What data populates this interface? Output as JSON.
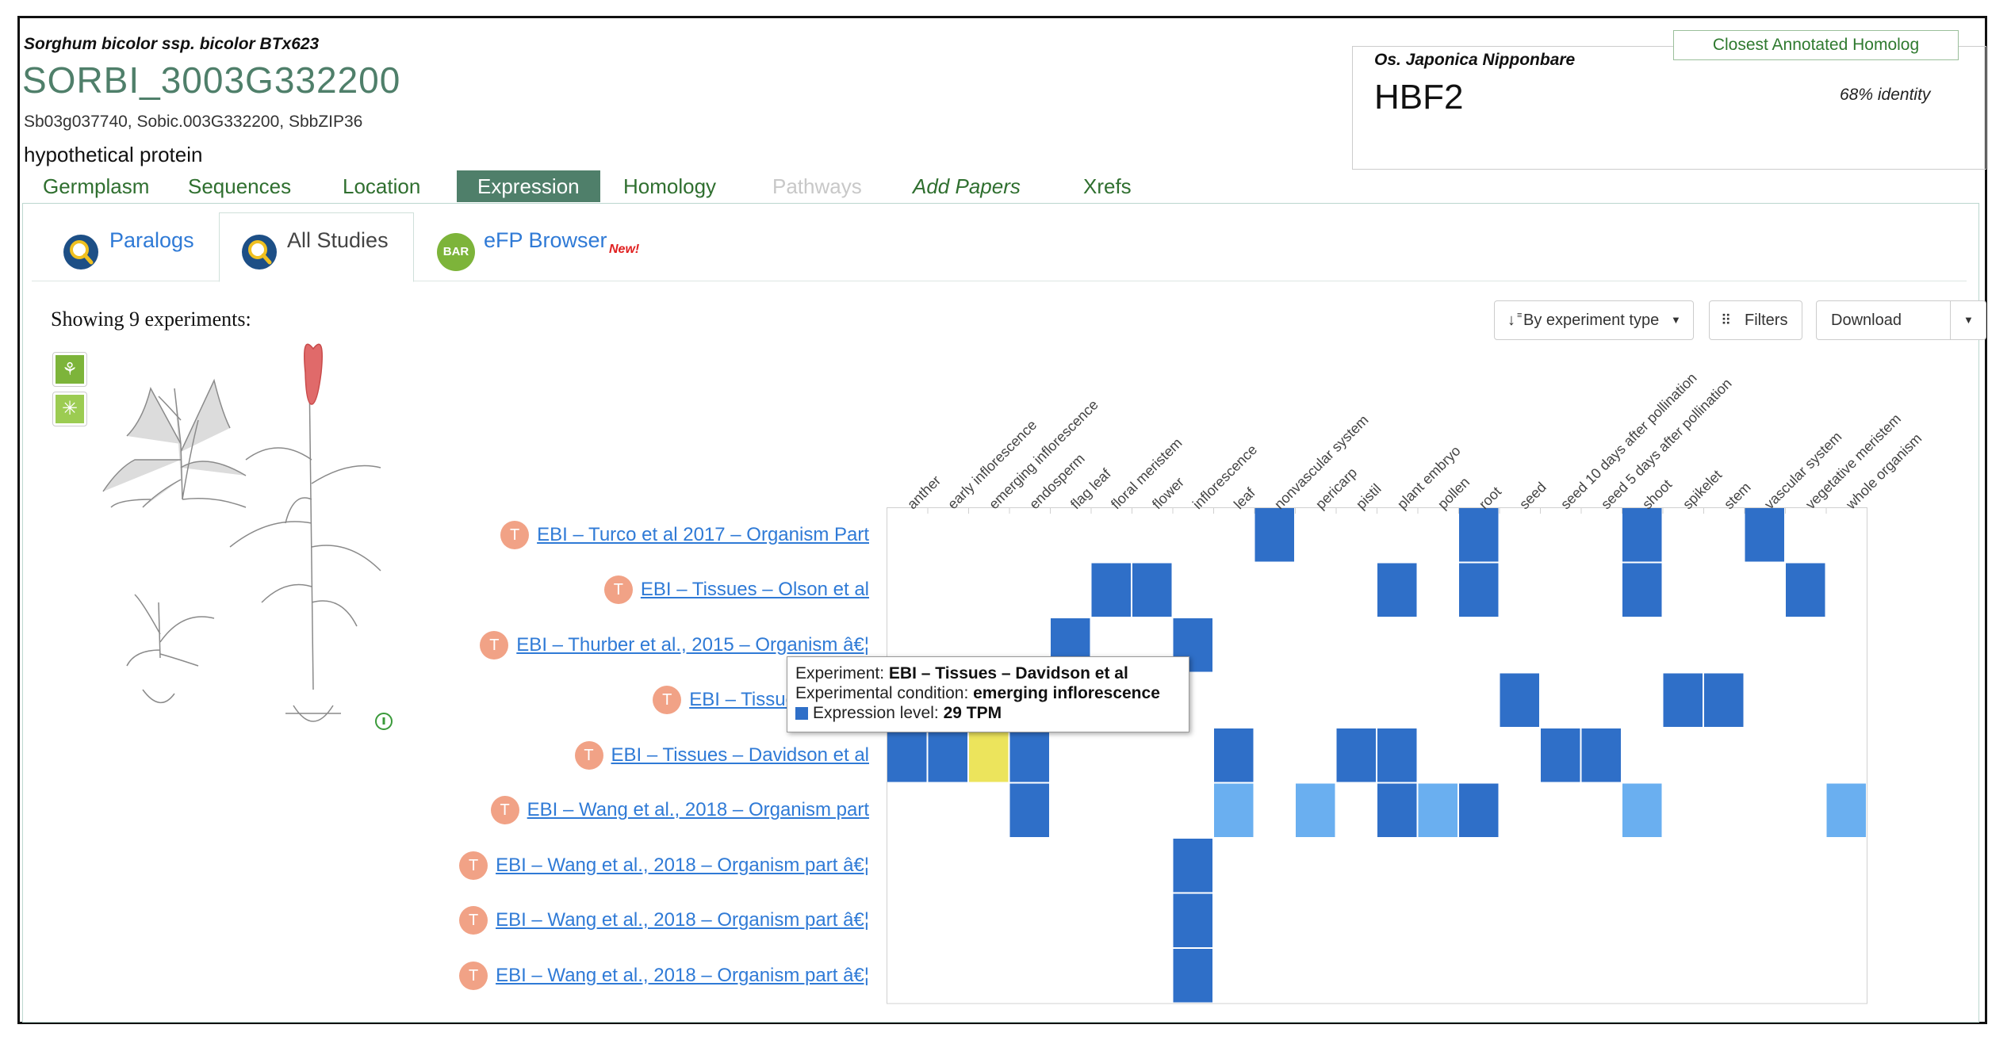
{
  "header": {
    "species": "Sorghum bicolor ssp. bicolor BTx623",
    "gene_id": "SORBI_3003G332200",
    "synonyms": "Sb03g037740, Sobic.003G332200, SbbZIP36",
    "description": "hypothetical protein"
  },
  "homolog": {
    "badge": "Closest Annotated Homolog",
    "species": "Os. Japonica Nipponbare",
    "name": "HBF2",
    "identity": "68% identity"
  },
  "tabs": [
    {
      "label": "Germplasm"
    },
    {
      "label": "Sequences"
    },
    {
      "label": "Location"
    },
    {
      "label": "Expression"
    },
    {
      "label": "Homology"
    },
    {
      "label": "Pathways"
    },
    {
      "label": "Add Papers"
    },
    {
      "label": "Xrefs"
    }
  ],
  "subtabs": {
    "paralogs": "Paralogs",
    "all_studies": "All Studies",
    "efp": "eFP Browser",
    "efp_badge": "New!",
    "bar_icon_text": "BAR"
  },
  "toolbar": {
    "showing": "Showing 9 experiments:",
    "sort": "By experiment type",
    "filters": "Filters",
    "download": "Download"
  },
  "colors": {
    "high": "#2f6fc8",
    "low": "#6aaff0",
    "selected": "#ece45c",
    "grid": "#d0d0d0",
    "gene_green": "#4f7f6a",
    "link_blue": "#2f7ad6"
  },
  "icons": [
    "magnifier-icon",
    "bar-logo-icon",
    "sort-icon",
    "filter-icon",
    "caret-down-icon",
    "plant-view-icon",
    "flower-view-icon",
    "info-icon"
  ],
  "heatmap": {
    "conditions": [
      "anther",
      "early inflorescence",
      "emerging inflorescence",
      "endosperm",
      "flag leaf",
      "floral meristem",
      "flower",
      "inflorescence",
      "leaf",
      "nonvascular system",
      "pericarp",
      "pistil",
      "plant embryo",
      "pollen",
      "root",
      "seed",
      "seed 10 days after pollination",
      "seed 5 days after pollination",
      "shoot",
      "spikelet",
      "stem",
      "vascular system",
      "vegetative meristem",
      "whole organism"
    ],
    "experiments": [
      {
        "name": "EBI – Turco et al 2017 – Organism Part",
        "badge": "T",
        "cells": [
          [
            9,
            "high"
          ],
          [
            14,
            "high"
          ],
          [
            18,
            "high"
          ],
          [
            21,
            "high"
          ]
        ]
      },
      {
        "name": "EBI – Tissues – Olson et al",
        "badge": "T",
        "cells": [
          [
            5,
            "high"
          ],
          [
            6,
            "high"
          ],
          [
            12,
            "high"
          ],
          [
            14,
            "high"
          ],
          [
            18,
            "high"
          ],
          [
            22,
            "high"
          ]
        ]
      },
      {
        "name": "EBI – Thurber et al., 2015 – Organism â€¦",
        "badge": "T",
        "cells": [
          [
            4,
            "high"
          ],
          [
            7,
            "high"
          ]
        ]
      },
      {
        "name": "EBI – Tissues – 3 Ma",
        "badge": "T",
        "cells": [
          [
            15,
            "high"
          ],
          [
            19,
            "high"
          ],
          [
            20,
            "high"
          ]
        ]
      },
      {
        "name": "EBI – Tissues – Davidson et al",
        "badge": "T",
        "cells": [
          [
            0,
            "high"
          ],
          [
            1,
            "high"
          ],
          [
            2,
            "selected"
          ],
          [
            3,
            "high"
          ],
          [
            8,
            "high"
          ],
          [
            11,
            "high"
          ],
          [
            12,
            "high"
          ],
          [
            16,
            "high"
          ],
          [
            17,
            "high"
          ]
        ]
      },
      {
        "name": "EBI – Wang et al., 2018 – Organism part",
        "badge": "T",
        "cells": [
          [
            3,
            "high"
          ],
          [
            8,
            "low"
          ],
          [
            10,
            "low"
          ],
          [
            12,
            "high"
          ],
          [
            13,
            "low"
          ],
          [
            14,
            "high"
          ],
          [
            18,
            "low"
          ],
          [
            23,
            "low"
          ]
        ]
      },
      {
        "name": "EBI – Wang et al., 2018 – Organism part â€¦",
        "badge": "T",
        "cells": [
          [
            7,
            "high"
          ]
        ]
      },
      {
        "name": "EBI – Wang et al., 2018 – Organism part â€¦",
        "badge": "T",
        "cells": [
          [
            7,
            "high"
          ]
        ]
      },
      {
        "name": "EBI – Wang et al., 2018 – Organism part â€¦",
        "badge": "T",
        "cells": [
          [
            7,
            "high"
          ]
        ]
      }
    ]
  },
  "tooltip": {
    "exp_label": "Experiment: ",
    "exp_value": "EBI – Tissues – Davidson et al",
    "cond_label": "Experimental condition: ",
    "cond_value": "emerging inflorescence",
    "level_label": "Expression level: ",
    "level_value": "29 TPM"
  }
}
